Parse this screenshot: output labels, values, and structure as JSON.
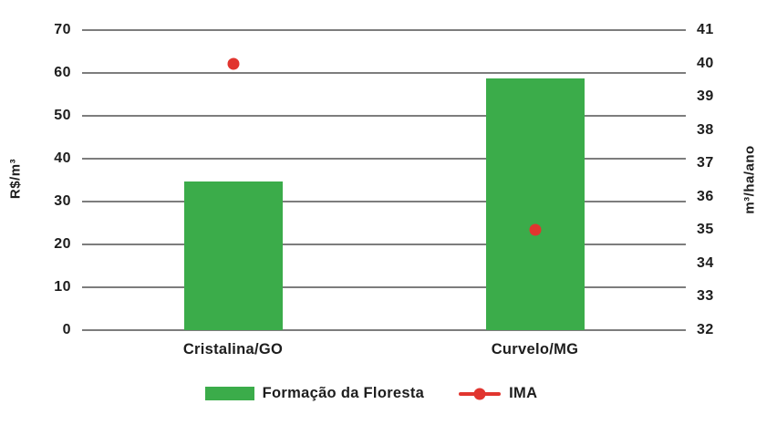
{
  "chart_data": {
    "type": "bar",
    "subtype": "combo-bar-scatter-dual-axis",
    "title": "",
    "categories": [
      "Cristalina/GO",
      "Curvelo/MG"
    ],
    "series": [
      {
        "name": "Formação da Floresta",
        "type": "bar",
        "axis": "left",
        "values": [
          34.6,
          58.7
        ],
        "color": "#3bac4a"
      },
      {
        "name": "IMA",
        "type": "scatter",
        "axis": "right",
        "values": [
          40,
          35
        ],
        "color": "#e1352f"
      }
    ],
    "left_axis": {
      "label": "R$/m³",
      "min": 0,
      "max": 70,
      "tick_step": 10,
      "ticks": [
        70,
        60,
        50,
        40,
        30,
        20,
        10,
        0
      ]
    },
    "right_axis": {
      "label": "m³/ha/ano",
      "min": 32,
      "max": 41,
      "tick_step": 1,
      "ticks": [
        41,
        40,
        39,
        38,
        37,
        36,
        35,
        34,
        33,
        32
      ]
    },
    "grid": true,
    "legend_position": "bottom"
  },
  "colors": {
    "background": "#ffffff",
    "gridline": "#7d7d7d",
    "text": "#1d1d1d",
    "bar_green": "#3bac4a",
    "ima_red": "#e1352f"
  }
}
